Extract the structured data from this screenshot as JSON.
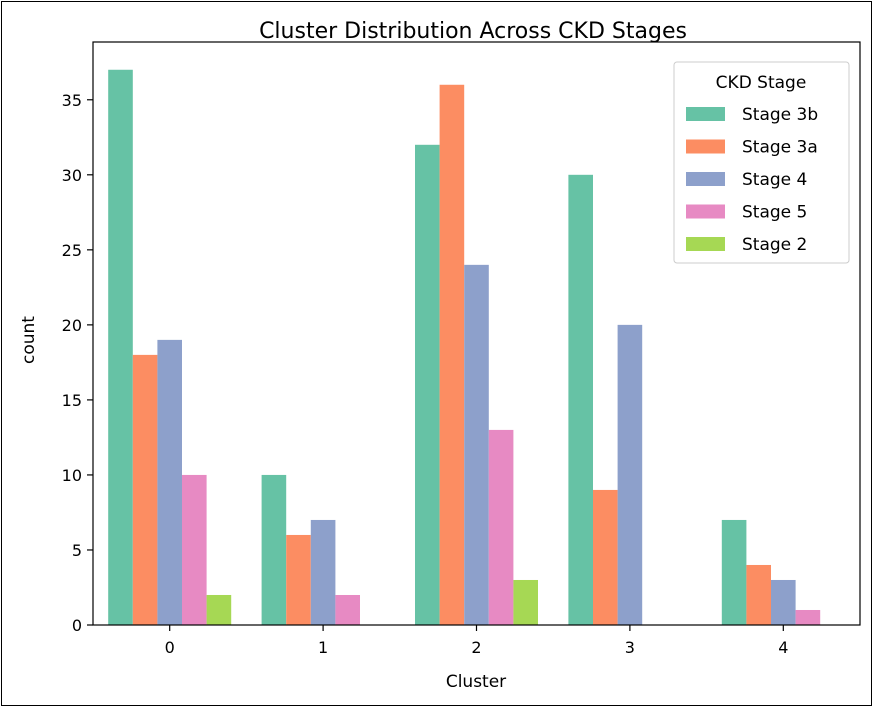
{
  "chart_data": {
    "type": "bar",
    "title": "Cluster Distribution Across CKD Stages",
    "xlabel": "Cluster",
    "ylabel": "count",
    "categories": [
      "0",
      "1",
      "2",
      "3",
      "4"
    ],
    "yticks": [
      0,
      5,
      10,
      15,
      20,
      25,
      30,
      35
    ],
    "ylim": [
      0,
      38.85
    ],
    "grid": false,
    "legend": {
      "title": "CKD Stage",
      "placement": "top-right"
    },
    "series": [
      {
        "name": "Stage 3b",
        "color": "#66c2a5",
        "values": [
          37,
          10,
          32,
          30,
          7
        ]
      },
      {
        "name": "Stage 3a",
        "color": "#fc8d62",
        "values": [
          18,
          6,
          36,
          9,
          4
        ]
      },
      {
        "name": "Stage 4",
        "color": "#8da0cb",
        "values": [
          19,
          7,
          24,
          20,
          3
        ]
      },
      {
        "name": "Stage 5",
        "color": "#e78ac3",
        "values": [
          10,
          2,
          13,
          0,
          1
        ]
      },
      {
        "name": "Stage 2",
        "color": "#a6d854",
        "values": [
          2,
          0,
          3,
          0,
          0
        ]
      }
    ]
  }
}
